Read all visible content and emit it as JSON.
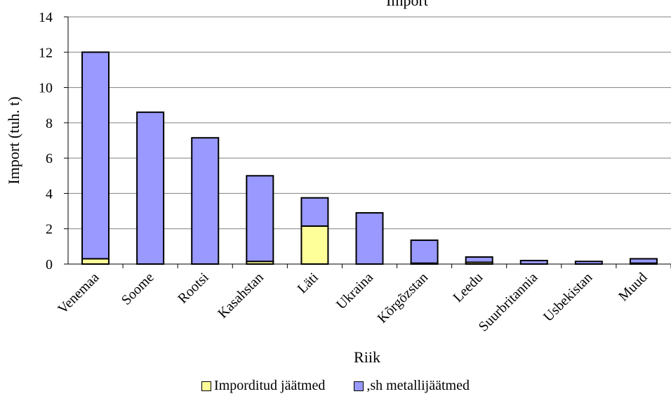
{
  "chart_data": {
    "type": "bar",
    "stacked": true,
    "title": "Import",
    "xlabel": "Riik",
    "ylabel": "Import (tuh. t)",
    "ylim": [
      0,
      14
    ],
    "yticks": [
      0,
      2,
      4,
      6,
      8,
      10,
      12,
      14
    ],
    "grid": true,
    "legend_position": "bottom",
    "categories": [
      "Venemaa",
      "Soome",
      "Rootsi",
      "Kasahstan",
      "Läti",
      "Ukraina",
      "Kõrgõzstan",
      "Leedu",
      "Suurbritannia",
      "Usbekistan",
      "Muud"
    ],
    "series": [
      {
        "name": "Imporditud jäätmed",
        "color": "#ffff99",
        "values": [
          0.3,
          0.0,
          0.0,
          0.15,
          2.15,
          0.0,
          0.05,
          0.1,
          0.0,
          0.0,
          0.05
        ]
      },
      {
        "name": ",sh metallijäätmed",
        "color": "#9999ff",
        "values": [
          11.7,
          8.6,
          7.15,
          4.85,
          1.6,
          2.9,
          1.3,
          0.3,
          0.2,
          0.15,
          0.25
        ]
      }
    ]
  }
}
